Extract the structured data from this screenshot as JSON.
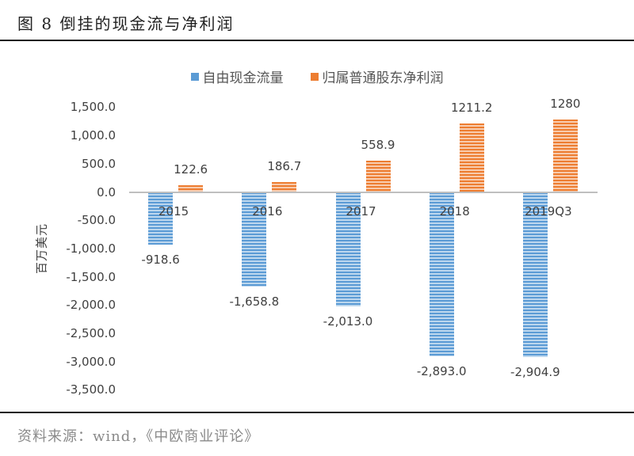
{
  "figure": {
    "title": "图 8  倒挂的现金流与净利润",
    "source": "资料来源：wind，《中欧商业评论》"
  },
  "legend": {
    "series_1": {
      "label": "自由现金流量",
      "color": "#5b9bd5"
    },
    "series_2": {
      "label": "归属普通股东净利润",
      "color": "#ed7d31"
    }
  },
  "axis": {
    "y_title": "百万美元",
    "y_ticks": [
      "1,500.0",
      "1,000.0",
      "500.0",
      "0.0",
      "-500.0",
      "-1,000.0",
      "-1,500.0",
      "-2,000.0",
      "-2,500.0",
      "-3,000.0",
      "-3,500.0"
    ]
  },
  "groups": [
    {
      "category": "2015",
      "fcf_label": "-918.6",
      "ni_label": "122.6"
    },
    {
      "category": "2016",
      "fcf_label": "-1,658.8",
      "ni_label": "186.7"
    },
    {
      "category": "2017",
      "fcf_label": "-2,013.0",
      "ni_label": "558.9"
    },
    {
      "category": "2018",
      "fcf_label": "-2,893.0",
      "ni_label": "1211.2"
    },
    {
      "category": "2019Q3",
      "fcf_label": "-2,904.9",
      "ni_label": "1280"
    }
  ],
  "chart_data": {
    "type": "bar",
    "title": "倒挂的现金流与净利润",
    "xlabel": "",
    "ylabel": "百万美元",
    "categories": [
      "2015",
      "2016",
      "2017",
      "2018",
      "2019Q3"
    ],
    "series": [
      {
        "name": "自由现金流量",
        "values": [
          -918.6,
          -1658.8,
          -2013.0,
          -2893.0,
          -2904.9
        ],
        "color": "#5b9bd5"
      },
      {
        "name": "归属普通股东净利润",
        "values": [
          122.6,
          186.7,
          558.9,
          1211.2,
          1280
        ],
        "color": "#ed7d31"
      }
    ],
    "ylim": [
      -3500,
      1500
    ],
    "ytick_step": 500,
    "grid": false,
    "legend_position": "top",
    "data_labels": true
  }
}
